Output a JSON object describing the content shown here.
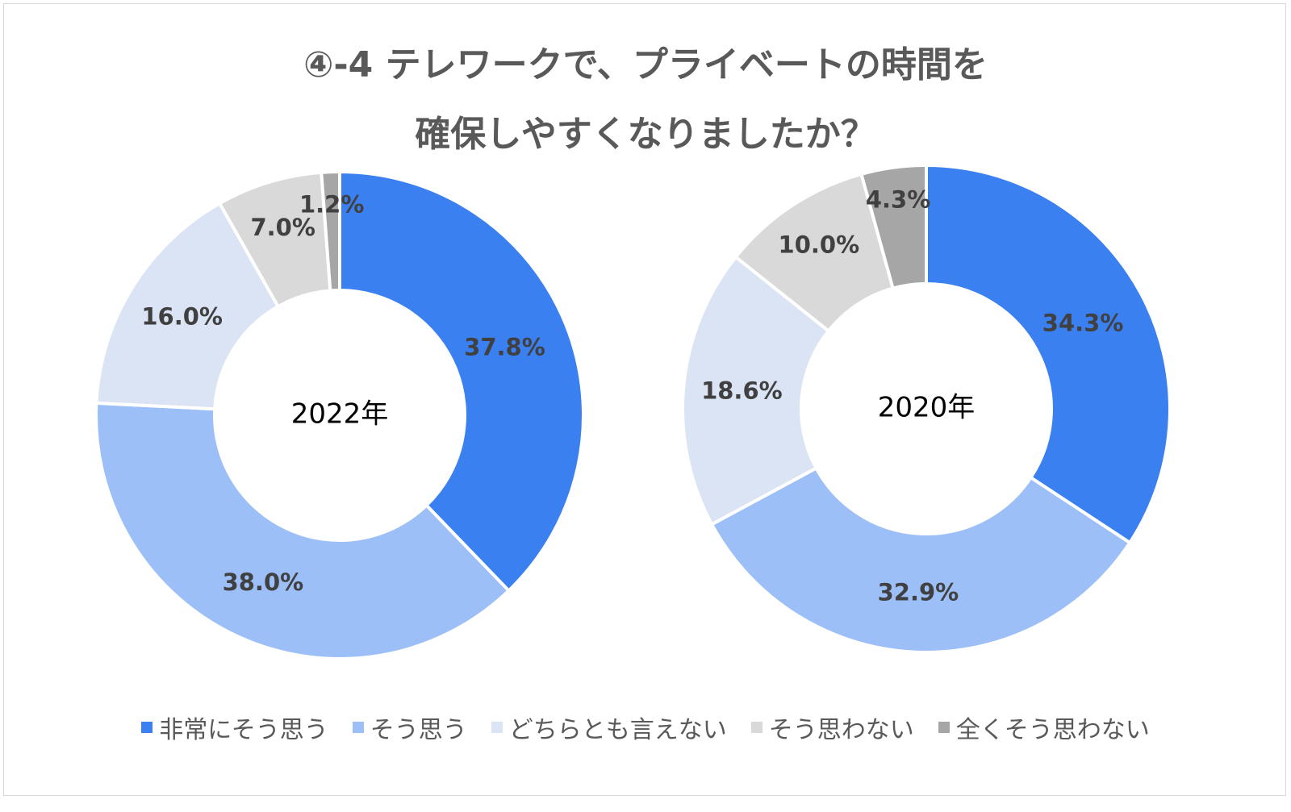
{
  "title": {
    "line1": "④-4 テレワークで、プライベートの時間を",
    "line2": "確保しやすくなりましたか？"
  },
  "chart_data": [
    {
      "type": "pie",
      "center_label": "2022年",
      "categories": [
        "非常にそう思う",
        "そう思う",
        "どちらとも言えない",
        "そう思わない",
        "全くそう思わない"
      ],
      "values": [
        37.8,
        38.0,
        16.0,
        7.0,
        1.2
      ],
      "labels": [
        "37.8%",
        "38.0%",
        "16.0%",
        "7.0%",
        "1.2%"
      ],
      "colors": [
        "#3a80f1",
        "#9dbff7",
        "#dbe4f4",
        "#d9d9d9",
        "#a6a6a6"
      ]
    },
    {
      "type": "pie",
      "center_label": "2020年",
      "categories": [
        "非常にそう思う",
        "そう思う",
        "どちらとも言えない",
        "そう思わない",
        "全くそう思わない"
      ],
      "values": [
        34.3,
        32.9,
        18.6,
        10.0,
        4.3
      ],
      "labels": [
        "34.3%",
        "32.9%",
        "18.6%",
        "10.0%",
        "4.3%"
      ],
      "colors": [
        "#3a80f1",
        "#9dbff7",
        "#dbe4f4",
        "#d9d9d9",
        "#a6a6a6"
      ]
    }
  ],
  "legend": [
    {
      "label": "非常にそう思う",
      "color": "#3a80f1"
    },
    {
      "label": "そう思う",
      "color": "#9dbff7"
    },
    {
      "label": "どちらとも言えない",
      "color": "#dbe4f4"
    },
    {
      "label": "そう思わない",
      "color": "#d9d9d9"
    },
    {
      "label": "全くそう思わない",
      "color": "#a6a6a6"
    }
  ]
}
